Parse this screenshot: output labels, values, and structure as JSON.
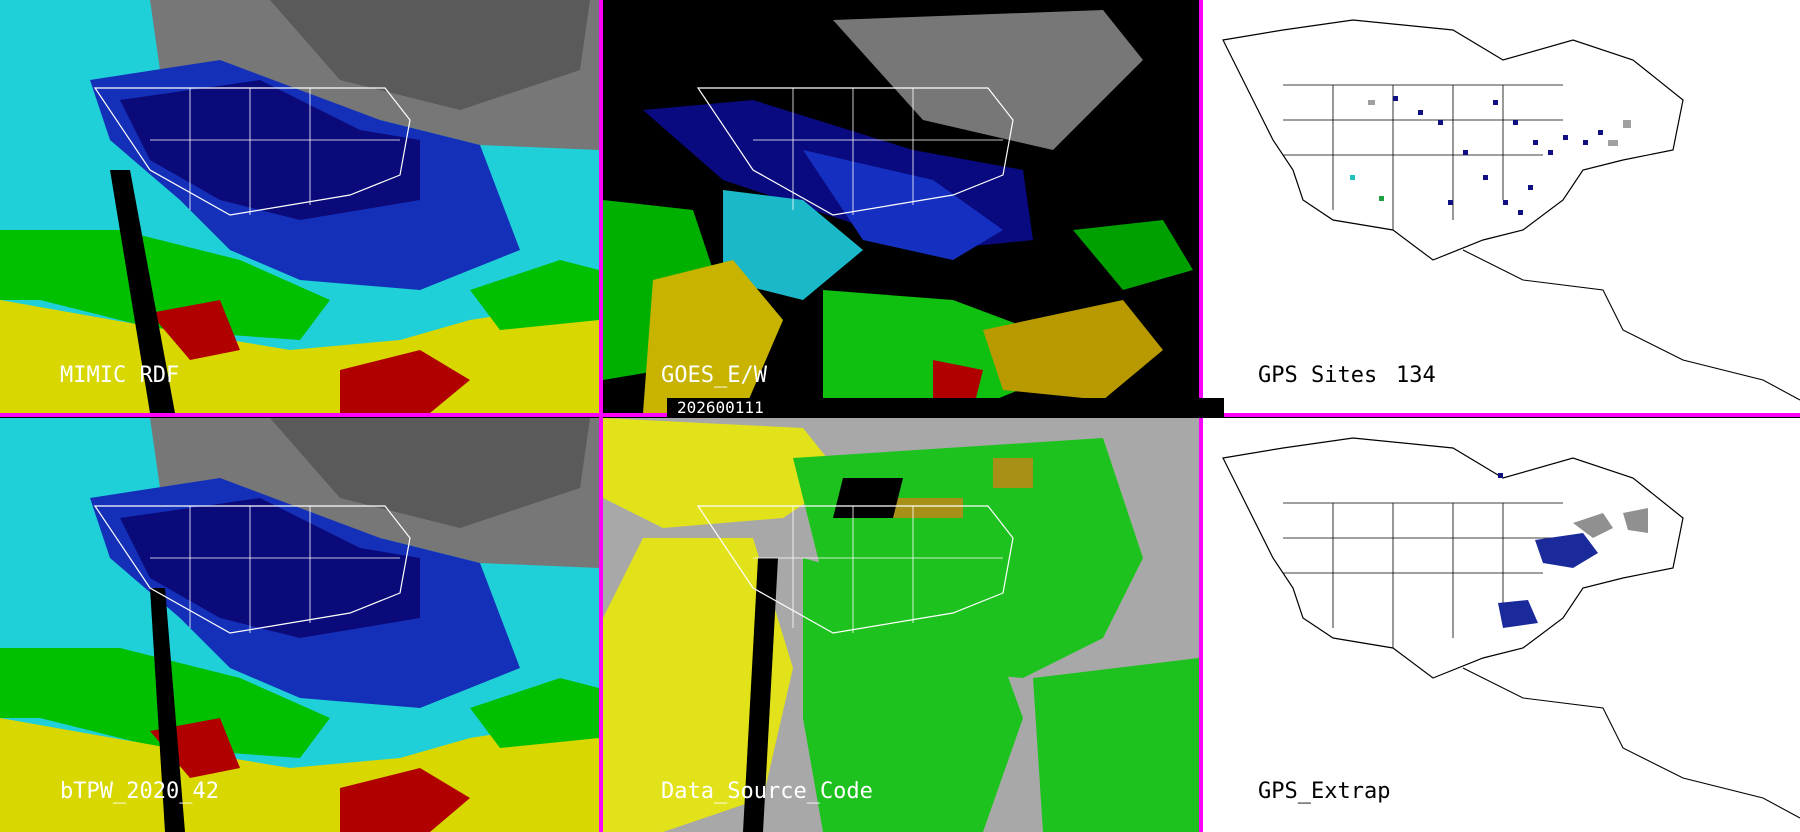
{
  "date_stamp": "202600111",
  "panels": {
    "mimic": {
      "label": "MIMIC RDF"
    },
    "goes": {
      "label": "GOES_E/W"
    },
    "gps_sites": {
      "label": "GPS Sites",
      "count": "134"
    },
    "btpw": {
      "label": "bTPW_2020_42"
    },
    "data_source": {
      "label": "Data_Source_Code"
    },
    "gps_extrap": {
      "label": "GPS_Extrap"
    }
  },
  "colors": {
    "separator": "#ff00ff",
    "tpw_scale": [
      "#606060",
      "#a0a0a0",
      "#0a0a80",
      "#1428d0",
      "#20d8e0",
      "#00c800",
      "#70e000",
      "#e8e000",
      "#c8b000",
      "#b00000",
      "#000000"
    ],
    "data_source": {
      "background": "#a8a8a8",
      "green": "#1ec21e",
      "yellow": "#e2e21a",
      "olive": "#a89018",
      "black": "#000000"
    },
    "gps_site_marker": "#101080"
  }
}
